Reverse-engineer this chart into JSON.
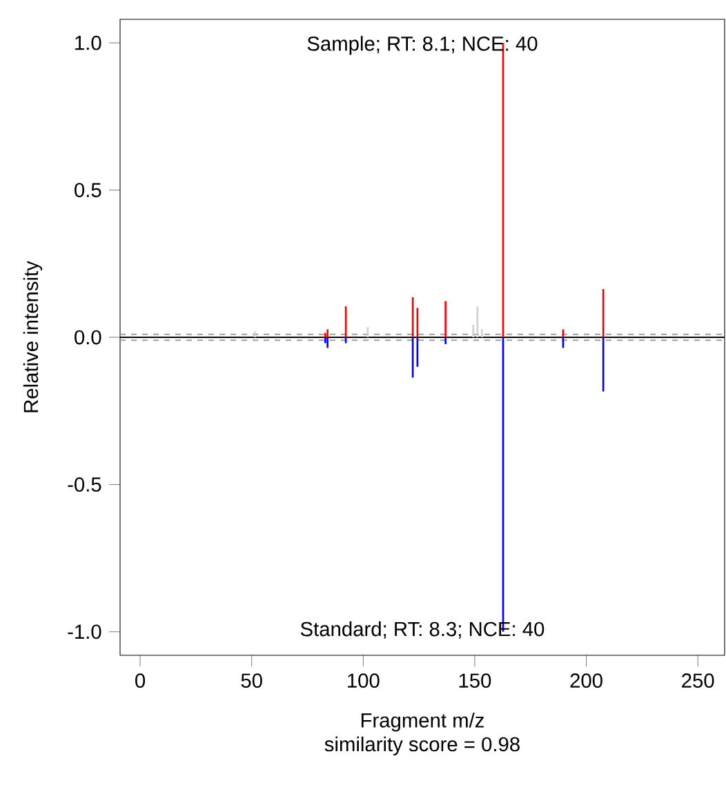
{
  "chart_data": {
    "type": "bar",
    "xlabel": "Fragment m/z",
    "ylabel": "Relative intensity",
    "annotations": [
      "Sample; RT: 8.1; NCE: 40",
      "Standard; RT: 8.3; NCE: 40",
      "similarity score = 0.98"
    ],
    "xlim": [
      -9,
      262
    ],
    "ylim": [
      -1.08,
      1.08
    ],
    "xticks": [
      0,
      50,
      100,
      150,
      200,
      250
    ],
    "yticks": [
      {
        "value": -1,
        "label": "-1.0"
      },
      {
        "value": -0.5,
        "label": "-0.5"
      },
      {
        "value": 0,
        "label": "0.0"
      },
      {
        "value": 0.5,
        "label": "0.5"
      },
      {
        "value": 1,
        "label": "1.0"
      }
    ],
    "ref_lines": [
      {
        "axis": "y",
        "value": 0.01,
        "color": "#a0a0a0",
        "line_style": "dashed"
      },
      {
        "axis": "y",
        "value": -0.01,
        "color": "#a0a0a0",
        "line_style": "dashed"
      },
      {
        "axis": "y",
        "value": 0,
        "color": "#000000",
        "line_style": "solid"
      }
    ],
    "series": [
      {
        "color": "#d0d0d0",
        "x": [
          51.5,
          102,
          149.3,
          151.2,
          153.2
        ],
        "values": [
          0.02,
          0.035,
          0.042,
          0.105,
          0.027
        ]
      },
      {
        "color": "#ff0000",
        "x": [
          83,
          84,
          92.2,
          122.2,
          124.3,
          136.9,
          162.7,
          189.6,
          207.6
        ],
        "values": [
          0.015,
          0.027,
          0.105,
          0.136,
          0.1,
          0.123,
          1.0,
          0.027,
          0.164
        ]
      },
      {
        "color": "#0000ff",
        "x": [
          83,
          84,
          92.2,
          122.2,
          124.3,
          136.9,
          162.7,
          189.6,
          207.6
        ],
        "values": [
          -0.02,
          -0.036,
          -0.02,
          -0.137,
          -0.1,
          -0.023,
          -1.0,
          -0.036,
          -0.184
        ]
      }
    ]
  }
}
